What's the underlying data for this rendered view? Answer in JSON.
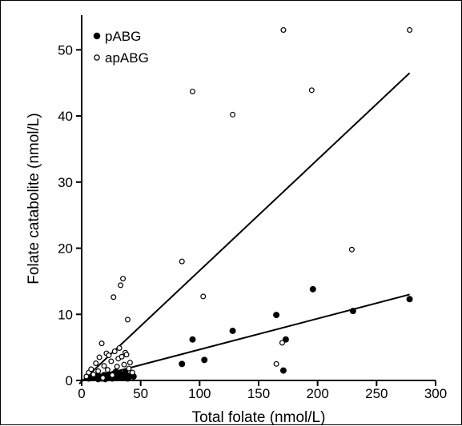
{
  "chart_data": {
    "type": "scatter",
    "xlabel": "Total folate (nmol/L)",
    "ylabel": "Folate catabolite (nmol/L)",
    "xlim": [
      0,
      300
    ],
    "ylim": [
      0,
      55
    ],
    "xticks": [
      0,
      50,
      100,
      150,
      200,
      250,
      300
    ],
    "yticks": [
      0,
      10,
      20,
      30,
      40,
      50
    ],
    "grid": false,
    "legend_position": "top-left",
    "series": [
      {
        "name": "pABG",
        "marker": "filled-circle",
        "points": [
          [
            6,
            0.3
          ],
          [
            9,
            0.5
          ],
          [
            11,
            0.4
          ],
          [
            13,
            0.7
          ],
          [
            15,
            0.6
          ],
          [
            17,
            0.3
          ],
          [
            19,
            0.8
          ],
          [
            21,
            0.5
          ],
          [
            23,
            0.9
          ],
          [
            25,
            0.6
          ],
          [
            27,
            1.0
          ],
          [
            28,
            0.4
          ],
          [
            29,
            1.3
          ],
          [
            30,
            0.7
          ],
          [
            31,
            0.5
          ],
          [
            32,
            1.1
          ],
          [
            33,
            0.8
          ],
          [
            34,
            0.4
          ],
          [
            35,
            0.9
          ],
          [
            36,
            0.6
          ],
          [
            37,
            1.2
          ],
          [
            38,
            0.7
          ],
          [
            39,
            0.3
          ],
          [
            40,
            0.5
          ],
          [
            42,
            0.8
          ],
          [
            44,
            0.6
          ],
          [
            20,
            0.2
          ],
          [
            26,
            0.3
          ],
          [
            14,
            0.2
          ],
          [
            24,
            0.4
          ],
          [
            85,
            2.5
          ],
          [
            94,
            6.2
          ],
          [
            104,
            3.1
          ],
          [
            128,
            7.5
          ],
          [
            165,
            9.9
          ],
          [
            171,
            1.5
          ],
          [
            173,
            6.2
          ],
          [
            196,
            13.8
          ],
          [
            230,
            10.5
          ],
          [
            278,
            12.3
          ]
        ],
        "fit_line": [
          [
            0,
            0
          ],
          [
            278,
            13
          ]
        ]
      },
      {
        "name": "apABG",
        "marker": "open-circle",
        "points": [
          [
            4,
            0.6
          ],
          [
            6,
            1.2
          ],
          [
            8,
            1.7
          ],
          [
            10,
            0.9
          ],
          [
            12,
            2.6
          ],
          [
            14,
            1.4
          ],
          [
            15,
            3.5
          ],
          [
            17,
            5.6
          ],
          [
            19,
            2.2
          ],
          [
            21,
            4.1
          ],
          [
            22,
            1.6
          ],
          [
            23,
            3.8
          ],
          [
            25,
            2.9
          ],
          [
            26,
            0.8
          ],
          [
            27,
            12.6
          ],
          [
            28,
            4.4
          ],
          [
            30,
            2.1
          ],
          [
            31,
            3.3
          ],
          [
            32,
            4.9
          ],
          [
            33,
            14.4
          ],
          [
            34,
            3.6
          ],
          [
            35,
            15.4
          ],
          [
            36,
            2.4
          ],
          [
            37,
            4.2
          ],
          [
            38,
            3.9
          ],
          [
            39,
            9.2
          ],
          [
            40,
            1.8
          ],
          [
            41,
            2.7
          ],
          [
            43,
            1.2
          ],
          [
            18,
            0.4
          ],
          [
            85,
            18.0
          ],
          [
            94,
            43.7
          ],
          [
            103,
            12.7
          ],
          [
            128,
            40.2
          ],
          [
            165,
            2.5
          ],
          [
            170,
            5.7
          ],
          [
            171,
            53.0
          ],
          [
            195,
            43.9
          ],
          [
            229,
            19.8
          ],
          [
            278,
            53.0
          ]
        ],
        "fit_line": [
          [
            -2,
            -0.5
          ],
          [
            278,
            46.5
          ]
        ]
      }
    ]
  }
}
